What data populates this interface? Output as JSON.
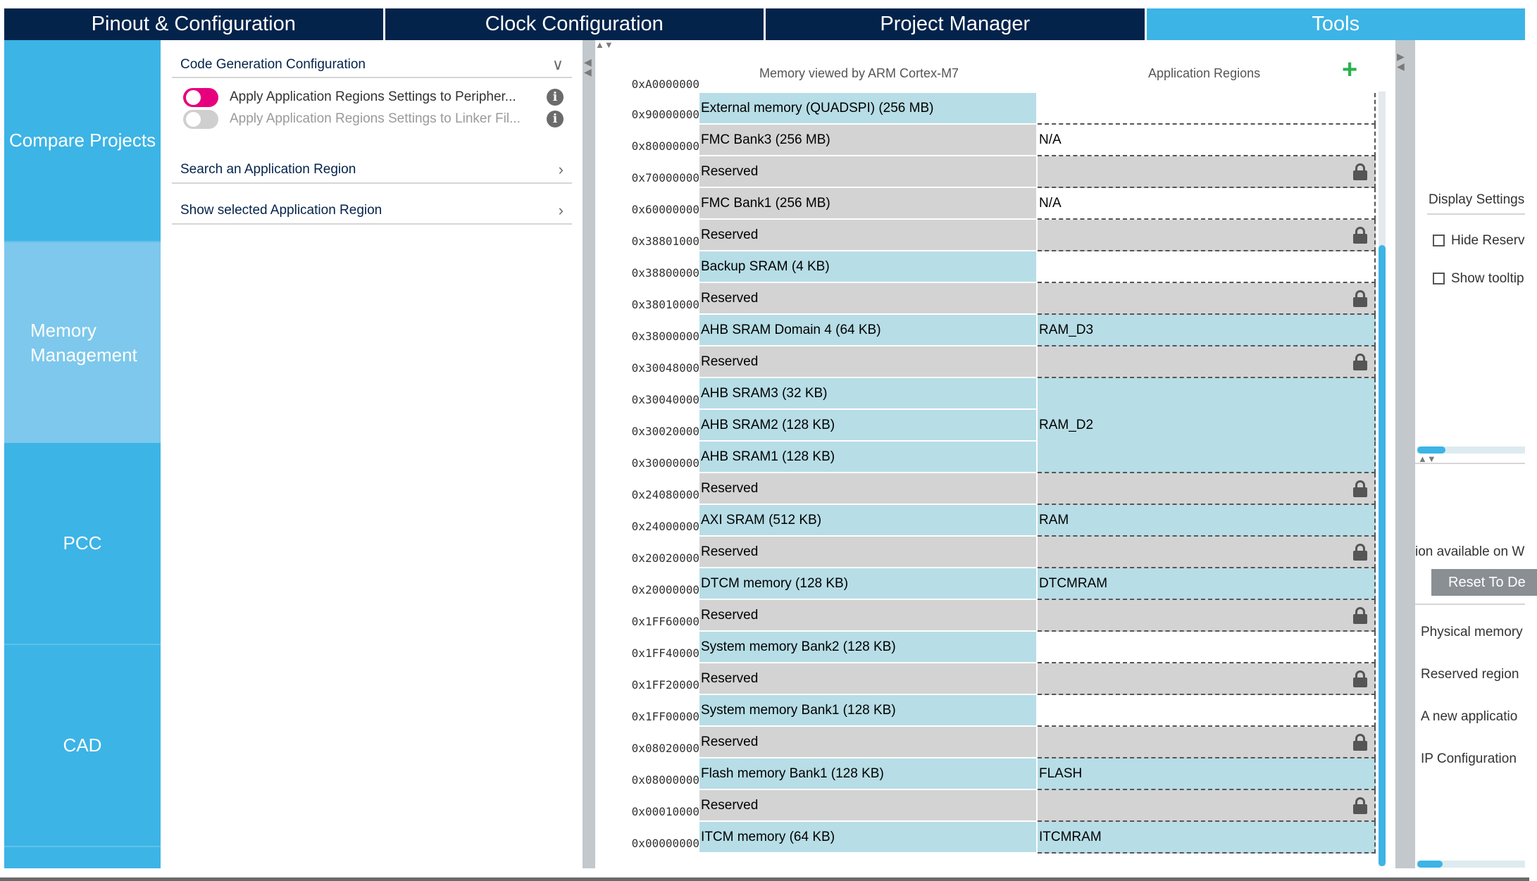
{
  "top_tabs": [
    {
      "label": "Pinout & Configuration",
      "active": false
    },
    {
      "label": "Clock Configuration",
      "active": false
    },
    {
      "label": "Project Manager",
      "active": false
    },
    {
      "label": "Tools",
      "active": true
    }
  ],
  "left_tabs": {
    "compare_projects": "Compare Projects",
    "memory_management_line1": "Memory",
    "memory_management_line2": "Management",
    "pcc": "PCC",
    "cad": "CAD"
  },
  "config_panel": {
    "code_generation": "Code Generation Configuration",
    "toggle_peripherals": "Apply Application Regions Settings to Peripher...",
    "toggle_linker": "Apply Application Regions Settings to Linker Fil...",
    "search_region": "Search an Application Region",
    "show_region": "Show selected Application Region"
  },
  "memory_map": {
    "header_memory": "Memory viewed by ARM Cortex-M7",
    "header_regions": "Application Regions",
    "add_icon": "+",
    "top_partial_address": "0xA0000000",
    "rows": [
      {
        "address": "0x90000000",
        "name": "External memory (QUADSPI) (256 MB)",
        "region": "",
        "type": "physical",
        "app_bg": "white"
      },
      {
        "address": "0x80000000",
        "name": "FMC Bank3 (256 MB)",
        "region": "N/A",
        "type": "reserved",
        "app_bg": "white"
      },
      {
        "address": "0x70000000",
        "name": "Reserved",
        "region": "",
        "type": "reserved",
        "app_bg": "gray",
        "locked": true
      },
      {
        "address": "0x60000000",
        "name": "FMC Bank1 (256 MB)",
        "region": "N/A",
        "type": "reserved",
        "app_bg": "white"
      },
      {
        "address": "0x38801000",
        "name": "Reserved",
        "region": "",
        "type": "reserved",
        "app_bg": "gray",
        "locked": true
      },
      {
        "address": "0x38800000",
        "name": "Backup SRAM (4 KB)",
        "region": "",
        "type": "physical",
        "app_bg": "white"
      },
      {
        "address": "0x38010000",
        "name": "Reserved",
        "region": "",
        "type": "reserved",
        "app_bg": "gray",
        "locked": true
      },
      {
        "address": "0x38000000",
        "name": "AHB SRAM Domain 4 (64 KB)",
        "region": "RAM_D3",
        "type": "physical",
        "app_bg": "blue"
      },
      {
        "address": "0x30048000",
        "name": "Reserved",
        "region": "",
        "type": "reserved",
        "app_bg": "gray",
        "locked": true
      },
      {
        "address": "0x30040000",
        "name": "AHB SRAM3 (32 KB)",
        "region": "",
        "type": "physical",
        "app_bg": "blue",
        "merged_top": true
      },
      {
        "address": "0x30020000",
        "name": "AHB SRAM2 (128 KB)",
        "region": "RAM_D2",
        "type": "physical",
        "app_bg": "blue",
        "merged_middle": true
      },
      {
        "address": "0x30000000",
        "name": "AHB SRAM1 (128 KB)",
        "region": "",
        "type": "physical",
        "app_bg": "blue",
        "merged_bottom": true
      },
      {
        "address": "0x24080000",
        "name": "Reserved",
        "region": "",
        "type": "reserved",
        "app_bg": "gray",
        "locked": true
      },
      {
        "address": "0x24000000",
        "name": "AXI SRAM (512 KB)",
        "region": "RAM",
        "type": "physical",
        "app_bg": "blue"
      },
      {
        "address": "0x20020000",
        "name": "Reserved",
        "region": "",
        "type": "reserved",
        "app_bg": "gray",
        "locked": true
      },
      {
        "address": "0x20000000",
        "name": "DTCM memory (128 KB)",
        "region": "DTCMRAM",
        "type": "physical",
        "app_bg": "blue"
      },
      {
        "address": "0x1FF60000",
        "name": "Reserved",
        "region": "",
        "type": "reserved",
        "app_bg": "gray",
        "locked": true
      },
      {
        "address": "0x1FF40000",
        "name": "System memory Bank2 (128 KB)",
        "region": "",
        "type": "physical",
        "app_bg": "white"
      },
      {
        "address": "0x1FF20000",
        "name": "Reserved",
        "region": "",
        "type": "reserved",
        "app_bg": "gray",
        "locked": true
      },
      {
        "address": "0x1FF00000",
        "name": "System memory Bank1 (128 KB)",
        "region": "",
        "type": "physical",
        "app_bg": "white"
      },
      {
        "address": "0x08020000",
        "name": "Reserved",
        "region": "",
        "type": "reserved",
        "app_bg": "gray",
        "locked": true
      },
      {
        "address": "0x08000000",
        "name": "Flash memory Bank1 (128 KB)",
        "region": "FLASH",
        "type": "physical",
        "app_bg": "blue"
      },
      {
        "address": "0x00010000",
        "name": "Reserved",
        "region": "",
        "type": "reserved",
        "app_bg": "gray",
        "locked": true
      },
      {
        "address": "0x00000000",
        "name": "ITCM memory (64 KB)",
        "region": "ITCMRAM",
        "type": "physical",
        "app_bg": "blue"
      }
    ]
  },
  "right_panel": {
    "display_settings": "Display Settings",
    "hide_reserved": "Hide Reserv",
    "show_tooltip": "Show tooltip",
    "option_available": "ion available on W",
    "reset_button": "Reset To De",
    "legend_physical": "Physical memory",
    "legend_reserved": "Reserved region",
    "legend_new_app": "A new applicatio",
    "legend_ip": "IP Configuration"
  },
  "colors": {
    "nav_dark": "#03234b",
    "nav_active": "#3cb4e6",
    "left_tab_active": "#7dc8ec",
    "memory_blue": "#b7dde6",
    "reserved_gray": "#d3d3d3",
    "toggle_on": "#e6007e",
    "add_green": "#2bb24c"
  }
}
